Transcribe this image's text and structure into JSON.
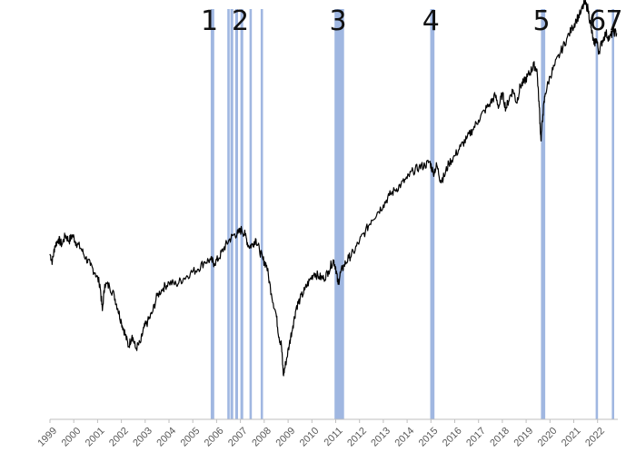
{
  "chart_data": {
    "type": "line",
    "title": "",
    "xlabel": "",
    "ylabel": "",
    "x_range": [
      1999.0,
      2022.85
    ],
    "y_range": [
      0,
      100
    ],
    "x_tick_labels": [
      "1999",
      "2000",
      "2001",
      "2002",
      "2003",
      "2004",
      "2005",
      "2006",
      "2007",
      "2008",
      "2009",
      "2010",
      "2011",
      "2012",
      "2013",
      "2014",
      "2015",
      "2016",
      "2017",
      "2018",
      "2019",
      "2020",
      "2021",
      "2022"
    ],
    "grid": false,
    "legend": "none",
    "line_color": "#000000",
    "band_color": "#8faadc",
    "event_labels": [
      "1",
      "2",
      "3",
      "4",
      "5",
      "6",
      "7"
    ],
    "event_bands": [
      {
        "start": 2005.75,
        "end": 2005.9
      },
      {
        "start": 2006.45,
        "end": 2006.55
      },
      {
        "start": 2006.58,
        "end": 2006.7
      },
      {
        "start": 2006.78,
        "end": 2006.9
      },
      {
        "start": 2007.0,
        "end": 2007.12
      },
      {
        "start": 2007.38,
        "end": 2007.48
      },
      {
        "start": 2007.85,
        "end": 2007.95
      },
      {
        "start": 2010.95,
        "end": 2011.35
      },
      {
        "start": 2014.97,
        "end": 2015.15
      },
      {
        "start": 2019.62,
        "end": 2019.8
      },
      {
        "start": 2021.92,
        "end": 2022.02
      },
      {
        "start": 2022.6,
        "end": 2022.7
      }
    ],
    "series": [
      {
        "values": [
          [
            1999.0,
            38.0
          ],
          [
            1999.1,
            36.0
          ],
          [
            1999.2,
            40.0
          ],
          [
            1999.35,
            42.0
          ],
          [
            1999.5,
            40.5
          ],
          [
            1999.65,
            43.0
          ],
          [
            1999.8,
            41.5
          ],
          [
            1999.95,
            43.0
          ],
          [
            2000.1,
            41.0
          ],
          [
            2000.3,
            39.5
          ],
          [
            2000.5,
            37.0
          ],
          [
            2000.7,
            35.0
          ],
          [
            2000.9,
            33.0
          ],
          [
            2001.1,
            30.0
          ],
          [
            2001.2,
            23.0
          ],
          [
            2001.3,
            30.0
          ],
          [
            2001.5,
            29.5
          ],
          [
            2001.7,
            27.0
          ],
          [
            2001.85,
            23.5
          ],
          [
            2002.0,
            20.0
          ],
          [
            2002.15,
            17.0
          ],
          [
            2002.3,
            13.5
          ],
          [
            2002.45,
            16.5
          ],
          [
            2002.6,
            13.0
          ],
          [
            2002.8,
            14.5
          ],
          [
            2002.95,
            18.5
          ],
          [
            2003.1,
            20.0
          ],
          [
            2003.3,
            22.5
          ],
          [
            2003.5,
            27.0
          ],
          [
            2003.75,
            29.0
          ],
          [
            2004.0,
            30.5
          ],
          [
            2004.3,
            30.0
          ],
          [
            2004.6,
            31.5
          ],
          [
            2004.9,
            33.0
          ],
          [
            2005.2,
            34.0
          ],
          [
            2005.5,
            36.0
          ],
          [
            2005.75,
            36.5
          ],
          [
            2005.9,
            35.5
          ],
          [
            2006.1,
            37.0
          ],
          [
            2006.3,
            39.5
          ],
          [
            2006.5,
            41.5
          ],
          [
            2006.7,
            43.0
          ],
          [
            2006.9,
            43.5
          ],
          [
            2007.05,
            44.5
          ],
          [
            2007.2,
            43.0
          ],
          [
            2007.35,
            40.0
          ],
          [
            2007.5,
            40.5
          ],
          [
            2007.65,
            42.0
          ],
          [
            2007.8,
            39.0
          ],
          [
            2007.95,
            36.5
          ],
          [
            2008.1,
            35.0
          ],
          [
            2008.3,
            27.5
          ],
          [
            2008.5,
            22.0
          ],
          [
            2008.62,
            16.0
          ],
          [
            2008.72,
            14.0
          ],
          [
            2008.8,
            6.0
          ],
          [
            2008.9,
            9.0
          ],
          [
            2009.05,
            14.0
          ],
          [
            2009.2,
            19.0
          ],
          [
            2009.35,
            24.0
          ],
          [
            2009.5,
            26.0
          ],
          [
            2009.7,
            28.5
          ],
          [
            2009.9,
            31.0
          ],
          [
            2010.1,
            33.0
          ],
          [
            2010.3,
            32.0
          ],
          [
            2010.5,
            31.5
          ],
          [
            2010.7,
            33.5
          ],
          [
            2010.9,
            36.5
          ],
          [
            2011.0,
            34.5
          ],
          [
            2011.1,
            30.0
          ],
          [
            2011.2,
            33.0
          ],
          [
            2011.35,
            35.0
          ],
          [
            2011.55,
            37.0
          ],
          [
            2011.75,
            38.5
          ],
          [
            2012.0,
            41.5
          ],
          [
            2012.25,
            44.0
          ],
          [
            2012.5,
            47.0
          ],
          [
            2012.75,
            49.0
          ],
          [
            2013.0,
            51.0
          ],
          [
            2013.25,
            53.5
          ],
          [
            2013.5,
            55.0
          ],
          [
            2013.75,
            56.5
          ],
          [
            2014.0,
            58.0
          ],
          [
            2014.25,
            60.0
          ],
          [
            2014.5,
            61.0
          ],
          [
            2014.75,
            61.5
          ],
          [
            2014.95,
            62.5
          ],
          [
            2015.1,
            59.5
          ],
          [
            2015.25,
            61.5
          ],
          [
            2015.4,
            57.5
          ],
          [
            2015.55,
            58.5
          ],
          [
            2015.75,
            62.0
          ],
          [
            2016.0,
            64.0
          ],
          [
            2016.25,
            66.5
          ],
          [
            2016.5,
            68.5
          ],
          [
            2016.75,
            71.0
          ],
          [
            2017.0,
            73.5
          ],
          [
            2017.25,
            76.0
          ],
          [
            2017.5,
            78.0
          ],
          [
            2017.7,
            80.0
          ],
          [
            2017.85,
            77.0
          ],
          [
            2018.0,
            80.5
          ],
          [
            2018.15,
            76.5
          ],
          [
            2018.3,
            79.5
          ],
          [
            2018.45,
            81.5
          ],
          [
            2018.6,
            78.0
          ],
          [
            2018.75,
            82.5
          ],
          [
            2018.9,
            83.5
          ],
          [
            2019.05,
            85.0
          ],
          [
            2019.2,
            86.5
          ],
          [
            2019.32,
            88.0
          ],
          [
            2019.45,
            87.0
          ],
          [
            2019.55,
            77.0
          ],
          [
            2019.62,
            68.0
          ],
          [
            2019.7,
            75.0
          ],
          [
            2019.8,
            80.5
          ],
          [
            2020.0,
            85.0
          ],
          [
            2020.2,
            88.0
          ],
          [
            2020.45,
            91.5
          ],
          [
            2020.7,
            95.0
          ],
          [
            2020.95,
            98.0
          ],
          [
            2021.1,
            100.0
          ],
          [
            2021.3,
            102.0
          ],
          [
            2021.45,
            104.5
          ],
          [
            2021.6,
            103.0
          ],
          [
            2021.72,
            98.0
          ],
          [
            2021.85,
            93.5
          ],
          [
            2021.95,
            95.0
          ],
          [
            2022.05,
            91.5
          ],
          [
            2022.2,
            94.5
          ],
          [
            2022.35,
            96.5
          ],
          [
            2022.5,
            95.0
          ],
          [
            2022.65,
            97.0
          ],
          [
            2022.8,
            96.5
          ]
        ]
      }
    ]
  }
}
